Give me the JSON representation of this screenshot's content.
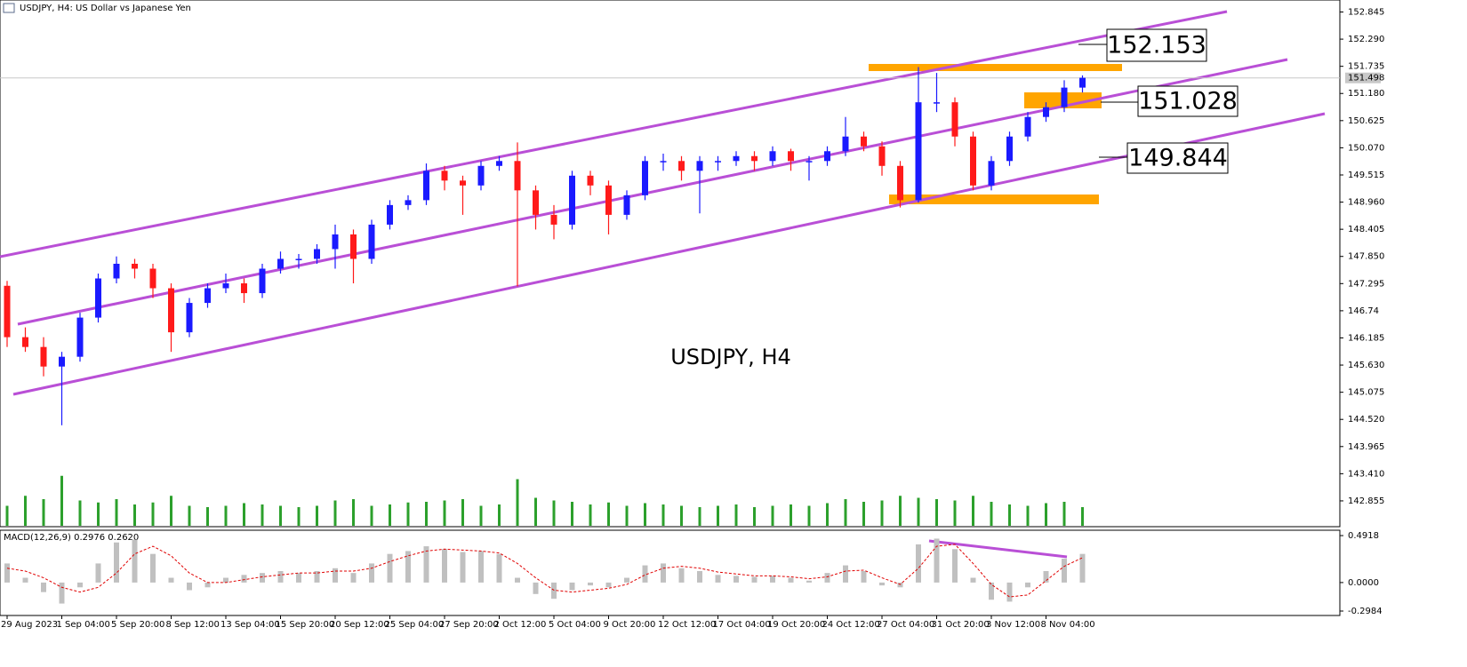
{
  "header": {
    "title": "USDJPY, H4:  US Dollar vs Japanese Yen"
  },
  "chart_data": {
    "type": "candlestick",
    "categories": [
      "29 Aug 2023",
      null,
      null,
      "1 Sep 04:00",
      null,
      null,
      "5 Sep 20:00",
      null,
      null,
      "8 Sep 12:00",
      null,
      null,
      "13 Sep 04:00",
      null,
      null,
      "15 Sep 20:00",
      null,
      null,
      "20 Sep 12:00",
      null,
      null,
      "25 Sep 04:00",
      null,
      null,
      "27 Sep 20:00",
      null,
      null,
      "2 Oct 12:00",
      null,
      null,
      "5 Oct 04:00",
      null,
      null,
      "9 Oct 20:00",
      null,
      null,
      "12 Oct 12:00",
      null,
      null,
      "17 Oct 04:00",
      null,
      null,
      "19 Oct 20:00",
      null,
      null,
      "24 Oct 12:00",
      null,
      null,
      "27 Oct 04:00",
      null,
      null,
      "31 Oct 20:00",
      null,
      null,
      "3 Nov 12:00",
      null,
      null,
      "8 Nov 04:00",
      null,
      null
    ],
    "open": [
      147.25,
      146.2,
      146.0,
      145.6,
      145.8,
      146.6,
      147.4,
      147.7,
      147.6,
      147.2,
      146.3,
      146.9,
      147.2,
      147.3,
      147.1,
      147.6,
      147.8,
      147.8,
      148.0,
      148.3,
      147.8,
      148.5,
      148.9,
      149.0,
      149.6,
      149.4,
      149.3,
      149.7,
      149.8,
      149.2,
      148.7,
      148.5,
      149.5,
      149.3,
      148.7,
      149.1,
      149.8,
      149.8,
      149.6,
      149.8,
      149.8,
      149.9,
      149.8,
      150.0,
      149.8,
      149.8,
      150.0,
      150.3,
      150.1,
      149.7,
      149.0,
      151.0,
      151.0,
      150.3,
      149.3,
      149.8,
      150.3,
      150.7,
      150.9,
      151.3
    ],
    "high": [
      147.35,
      146.4,
      146.2,
      145.9,
      146.7,
      147.5,
      147.85,
      147.8,
      147.7,
      147.3,
      147.0,
      147.3,
      147.5,
      147.4,
      147.7,
      147.95,
      147.9,
      148.1,
      148.5,
      148.4,
      148.6,
      149.0,
      149.1,
      149.75,
      149.7,
      149.5,
      149.8,
      149.9,
      150.18,
      149.3,
      148.9,
      149.6,
      149.6,
      149.4,
      149.2,
      149.9,
      149.95,
      149.9,
      149.9,
      149.9,
      150.0,
      150.0,
      150.1,
      150.05,
      149.9,
      150.1,
      150.7,
      150.4,
      150.2,
      149.8,
      151.72,
      151.6,
      151.1,
      150.4,
      149.9,
      150.4,
      150.8,
      151.0,
      151.45,
      151.55
    ],
    "low": [
      146.0,
      145.9,
      145.4,
      144.4,
      145.7,
      146.5,
      147.3,
      147.4,
      147.0,
      145.9,
      146.2,
      146.8,
      147.1,
      146.9,
      147.0,
      147.5,
      147.6,
      147.7,
      147.6,
      147.3,
      147.7,
      148.4,
      148.8,
      148.9,
      149.2,
      148.7,
      149.2,
      149.6,
      147.24,
      148.4,
      148.2,
      148.4,
      149.1,
      148.3,
      148.6,
      149.0,
      149.6,
      149.4,
      148.73,
      149.6,
      149.7,
      149.6,
      149.7,
      149.6,
      149.4,
      149.7,
      149.9,
      150.0,
      149.5,
      148.85,
      148.95,
      150.8,
      150.1,
      149.2,
      149.2,
      149.7,
      150.2,
      150.6,
      150.8,
      151.2
    ],
    "close": [
      146.2,
      146.0,
      145.6,
      145.8,
      146.6,
      147.4,
      147.7,
      147.6,
      147.2,
      146.3,
      146.9,
      147.2,
      147.3,
      147.1,
      147.6,
      147.8,
      147.8,
      148.0,
      148.3,
      147.8,
      148.5,
      148.9,
      149.0,
      149.6,
      149.4,
      149.3,
      149.7,
      149.8,
      149.2,
      148.7,
      148.5,
      149.5,
      149.3,
      148.7,
      149.1,
      149.8,
      149.8,
      149.6,
      149.8,
      149.8,
      149.9,
      149.8,
      150.0,
      149.8,
      149.8,
      150.0,
      150.3,
      150.1,
      149.7,
      149.0,
      151.0,
      151.0,
      150.3,
      149.3,
      149.8,
      150.3,
      150.7,
      150.9,
      151.3,
      151.5
    ],
    "up_color": "#1a1aff",
    "down_color": "#ff1a1a",
    "ylim": [
      142.346,
      153.09
    ],
    "yticks": [
      152.845,
      {
        "value": 152.29,
        "label": "152.290"
      },
      151.735,
      {
        "value": 151.18,
        "label": "151.180"
      },
      150.625,
      {
        "value": 150.07,
        "label": "150.070"
      },
      149.515,
      {
        "value": 148.96,
        "label": "148.960"
      },
      148.405,
      {
        "value": 147.85,
        "label": "147.850"
      },
      147.295,
      146.74,
      146.185,
      {
        "value": 145.63,
        "label": "145.630"
      },
      145.075,
      {
        "value": 144.52,
        "label": "144.520"
      },
      143.965,
      {
        "value": 143.41,
        "label": "143.410"
      },
      142.855
    ],
    "current_price": 151.498,
    "annotations": [
      "152.153",
      "151.028",
      "149.844"
    ],
    "watermark": "USDJPY, H4",
    "volume": {
      "color": "#2ca02c",
      "values": [
        30,
        45,
        40,
        75,
        38,
        35,
        40,
        32,
        35,
        45,
        30,
        28,
        30,
        34,
        32,
        30,
        28,
        30,
        38,
        40,
        30,
        32,
        35,
        36,
        38,
        40,
        30,
        32,
        70,
        42,
        38,
        36,
        32,
        35,
        30,
        34,
        32,
        30,
        28,
        30,
        32,
        28,
        30,
        32,
        30,
        34,
        40,
        36,
        38,
        45,
        42,
        40,
        38,
        45,
        36,
        32,
        30,
        34,
        36,
        28
      ]
    },
    "macd": {
      "title": "MACD(12,26,9) 0.2976 0.2620",
      "ylim": [
        -0.345,
        0.548
      ],
      "yticks": [
        0.4918,
        {
          "value": 0,
          "label": "0.0000"
        },
        -0.2984
      ],
      "histogram_color": "#c0c0c0",
      "signal_color": "#e00000",
      "histogram": [
        0.2,
        0.05,
        -0.1,
        -0.22,
        -0.05,
        0.2,
        0.42,
        0.45,
        0.3,
        0.05,
        -0.08,
        -0.05,
        0.05,
        0.08,
        0.1,
        0.12,
        0.1,
        0.12,
        0.15,
        0.1,
        0.2,
        0.3,
        0.33,
        0.38,
        0.35,
        0.32,
        0.33,
        0.3,
        0.05,
        -0.12,
        -0.17,
        -0.08,
        -0.03,
        -0.05,
        0.05,
        0.18,
        0.2,
        0.15,
        0.12,
        0.08,
        0.07,
        0.06,
        0.07,
        0.05,
        0.02,
        0.1,
        0.18,
        0.12,
        -0.03,
        -0.05,
        0.4,
        0.46,
        0.35,
        0.05,
        -0.18,
        -0.2,
        -0.05,
        0.12,
        0.25,
        0.3
      ],
      "signal": [
        0.15,
        0.12,
        0.05,
        -0.05,
        -0.1,
        -0.05,
        0.1,
        0.3,
        0.38,
        0.28,
        0.1,
        0.0,
        0.0,
        0.03,
        0.06,
        0.08,
        0.1,
        0.1,
        0.12,
        0.12,
        0.15,
        0.22,
        0.28,
        0.33,
        0.35,
        0.34,
        0.33,
        0.31,
        0.2,
        0.05,
        -0.08,
        -0.1,
        -0.08,
        -0.06,
        -0.02,
        0.08,
        0.15,
        0.17,
        0.15,
        0.11,
        0.09,
        0.07,
        0.07,
        0.06,
        0.04,
        0.06,
        0.12,
        0.13,
        0.05,
        -0.02,
        0.15,
        0.38,
        0.4,
        0.2,
        -0.02,
        -0.15,
        -0.13,
        0.02,
        0.17,
        0.26
      ]
    }
  }
}
